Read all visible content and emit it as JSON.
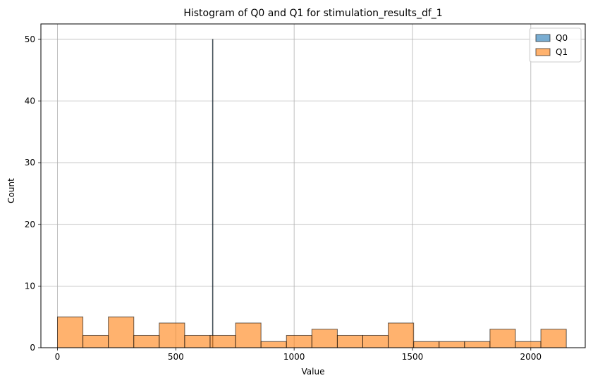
{
  "chart_data": {
    "type": "bar",
    "title": "Histogram of Q0 and Q1 for stimulation_results_df_1",
    "xlabel": "Value",
    "ylabel": "Count",
    "xlim": [
      -70,
      2230
    ],
    "ylim": [
      0,
      52.5
    ],
    "xticks": [
      0,
      500,
      1000,
      1500,
      2000
    ],
    "yticks": [
      0,
      10,
      20,
      30,
      40,
      50
    ],
    "grid": true,
    "legend_position": "top-right",
    "series": [
      {
        "name": "Q0",
        "color": "#1f77b4",
        "bins": [
          {
            "x0": 655,
            "x1": 657,
            "count": 50
          }
        ]
      },
      {
        "name": "Q1",
        "color": "#ff7f0e",
        "bins": [
          {
            "x0": 0,
            "x1": 107.5,
            "count": 5
          },
          {
            "x0": 107.5,
            "x1": 215,
            "count": 2
          },
          {
            "x0": 215,
            "x1": 322.5,
            "count": 5
          },
          {
            "x0": 322.5,
            "x1": 430,
            "count": 2
          },
          {
            "x0": 430,
            "x1": 537.5,
            "count": 4
          },
          {
            "x0": 537.5,
            "x1": 645,
            "count": 2
          },
          {
            "x0": 645,
            "x1": 752.5,
            "count": 2
          },
          {
            "x0": 752.5,
            "x1": 860,
            "count": 4
          },
          {
            "x0": 860,
            "x1": 967.5,
            "count": 1
          },
          {
            "x0": 967.5,
            "x1": 1075,
            "count": 2
          },
          {
            "x0": 1075,
            "x1": 1182.5,
            "count": 3
          },
          {
            "x0": 1182.5,
            "x1": 1290,
            "count": 2
          },
          {
            "x0": 1290,
            "x1": 1397.5,
            "count": 2
          },
          {
            "x0": 1397.5,
            "x1": 1505,
            "count": 4
          },
          {
            "x0": 1505,
            "x1": 1612.5,
            "count": 1
          },
          {
            "x0": 1612.5,
            "x1": 1720,
            "count": 1
          },
          {
            "x0": 1720,
            "x1": 1827.5,
            "count": 1
          },
          {
            "x0": 1827.5,
            "x1": 1935,
            "count": 3
          },
          {
            "x0": 1935,
            "x1": 2042.5,
            "count": 1
          },
          {
            "x0": 2042.5,
            "x1": 2150,
            "count": 3
          }
        ]
      }
    ]
  }
}
